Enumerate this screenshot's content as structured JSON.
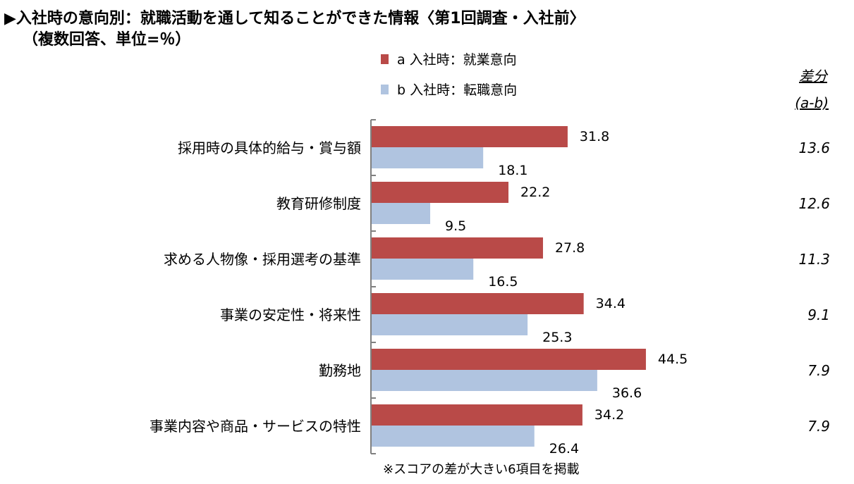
{
  "title_line1": "▶入社時の意向別：就職活動を通して知ることができた情報〈第1回調査・入社前〉",
  "title_line2": "（複数回答、単位=％）",
  "note": "※スコアの差が大きい6項目を掲載",
  "colors": {
    "series_a": "#b94a48",
    "series_b": "#b0c4e0",
    "axis": "#808080"
  },
  "chart_data": {
    "type": "bar",
    "orientation": "horizontal",
    "categories": [
      "採用時の具体的給与・賞与額",
      "教育研修制度",
      "求める人物像・採用選考の基準",
      "事業の安定性・将来性",
      "勤務地",
      "事業内容や商品・サービスの特性"
    ],
    "series": [
      {
        "name": "a 入社時：就業意向",
        "values": [
          31.8,
          22.2,
          27.8,
          34.4,
          44.5,
          34.2
        ]
      },
      {
        "name": "b 入社時：転職意向",
        "values": [
          18.1,
          9.5,
          16.5,
          25.3,
          36.6,
          26.4
        ]
      }
    ],
    "difference": {
      "header_line1": "差分",
      "header_line2": "(a-b)",
      "values": [
        "13.6",
        "12.6",
        "11.3",
        "9.1",
        "7.9",
        "7.9"
      ]
    },
    "xlim": [
      0,
      50
    ],
    "grid": false,
    "legend_placement": "top"
  }
}
